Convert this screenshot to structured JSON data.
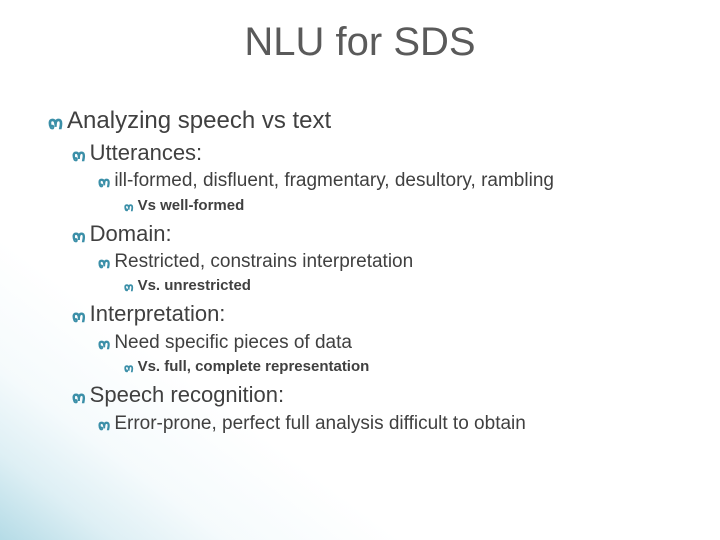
{
  "colors": {
    "title_text": "#5a5a5a",
    "body_text": "#404040",
    "bullet": "#3b8fa8",
    "background": "#ffffff",
    "gradient_corner": "#9fcdd9"
  },
  "typography": {
    "title_fontsize": 40,
    "lvl1_fontsize": 24,
    "lvl2_fontsize": 22,
    "lvl3_fontsize": 19,
    "lvl4_fontsize": 15,
    "font_family": "Arial"
  },
  "slide": {
    "title": "NLU for SDS",
    "bullets": [
      {
        "level": 1,
        "text": "Analyzing speech vs text"
      },
      {
        "level": 2,
        "text": "Utterances:"
      },
      {
        "level": 3,
        "text": "ill-formed, disfluent, fragmentary, desultory, rambling"
      },
      {
        "level": 4,
        "text": "Vs well-formed"
      },
      {
        "level": 2,
        "text": "Domain:"
      },
      {
        "level": 3,
        "text": "Restricted, constrains interpretation"
      },
      {
        "level": 4,
        "text": "Vs. unrestricted"
      },
      {
        "level": 2,
        "text": "Interpretation:"
      },
      {
        "level": 3,
        "text": "Need specific pieces of data"
      },
      {
        "level": 4,
        "text": "Vs. full, complete representation"
      },
      {
        "level": 2,
        "text": "Speech recognition:"
      },
      {
        "level": 3,
        "text": "Error-prone, perfect full analysis difficult to obtain"
      }
    ]
  }
}
